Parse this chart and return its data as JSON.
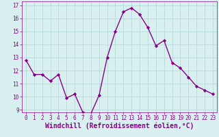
{
  "x": [
    0,
    1,
    2,
    3,
    4,
    5,
    6,
    7,
    8,
    9,
    10,
    11,
    12,
    13,
    14,
    15,
    16,
    17,
    18,
    19,
    20,
    21,
    22,
    23
  ],
  "y": [
    12.8,
    11.7,
    11.7,
    11.2,
    11.7,
    9.9,
    10.2,
    8.8,
    8.7,
    10.1,
    13.0,
    15.0,
    16.5,
    16.8,
    16.3,
    15.3,
    13.9,
    14.3,
    12.6,
    12.2,
    11.5,
    10.8,
    10.5,
    10.2
  ],
  "line_color": "#880088",
  "marker": "D",
  "marker_size": 2.2,
  "bg_color": "#d8f0f0",
  "grid_color": "#b8dada",
  "xlabel": "Windchill (Refroidissement éolien,°C)",
  "xlim": [
    -0.5,
    23.5
  ],
  "ylim": [
    8.8,
    17.3
  ],
  "yticks": [
    9,
    10,
    11,
    12,
    13,
    14,
    15,
    16,
    17
  ],
  "xticks": [
    0,
    1,
    2,
    3,
    4,
    5,
    6,
    7,
    8,
    9,
    10,
    11,
    12,
    13,
    14,
    15,
    16,
    17,
    18,
    19,
    20,
    21,
    22,
    23
  ],
  "tick_color": "#880088",
  "tick_fontsize": 5.5,
  "xlabel_fontsize": 7.0,
  "linewidth": 1.0
}
